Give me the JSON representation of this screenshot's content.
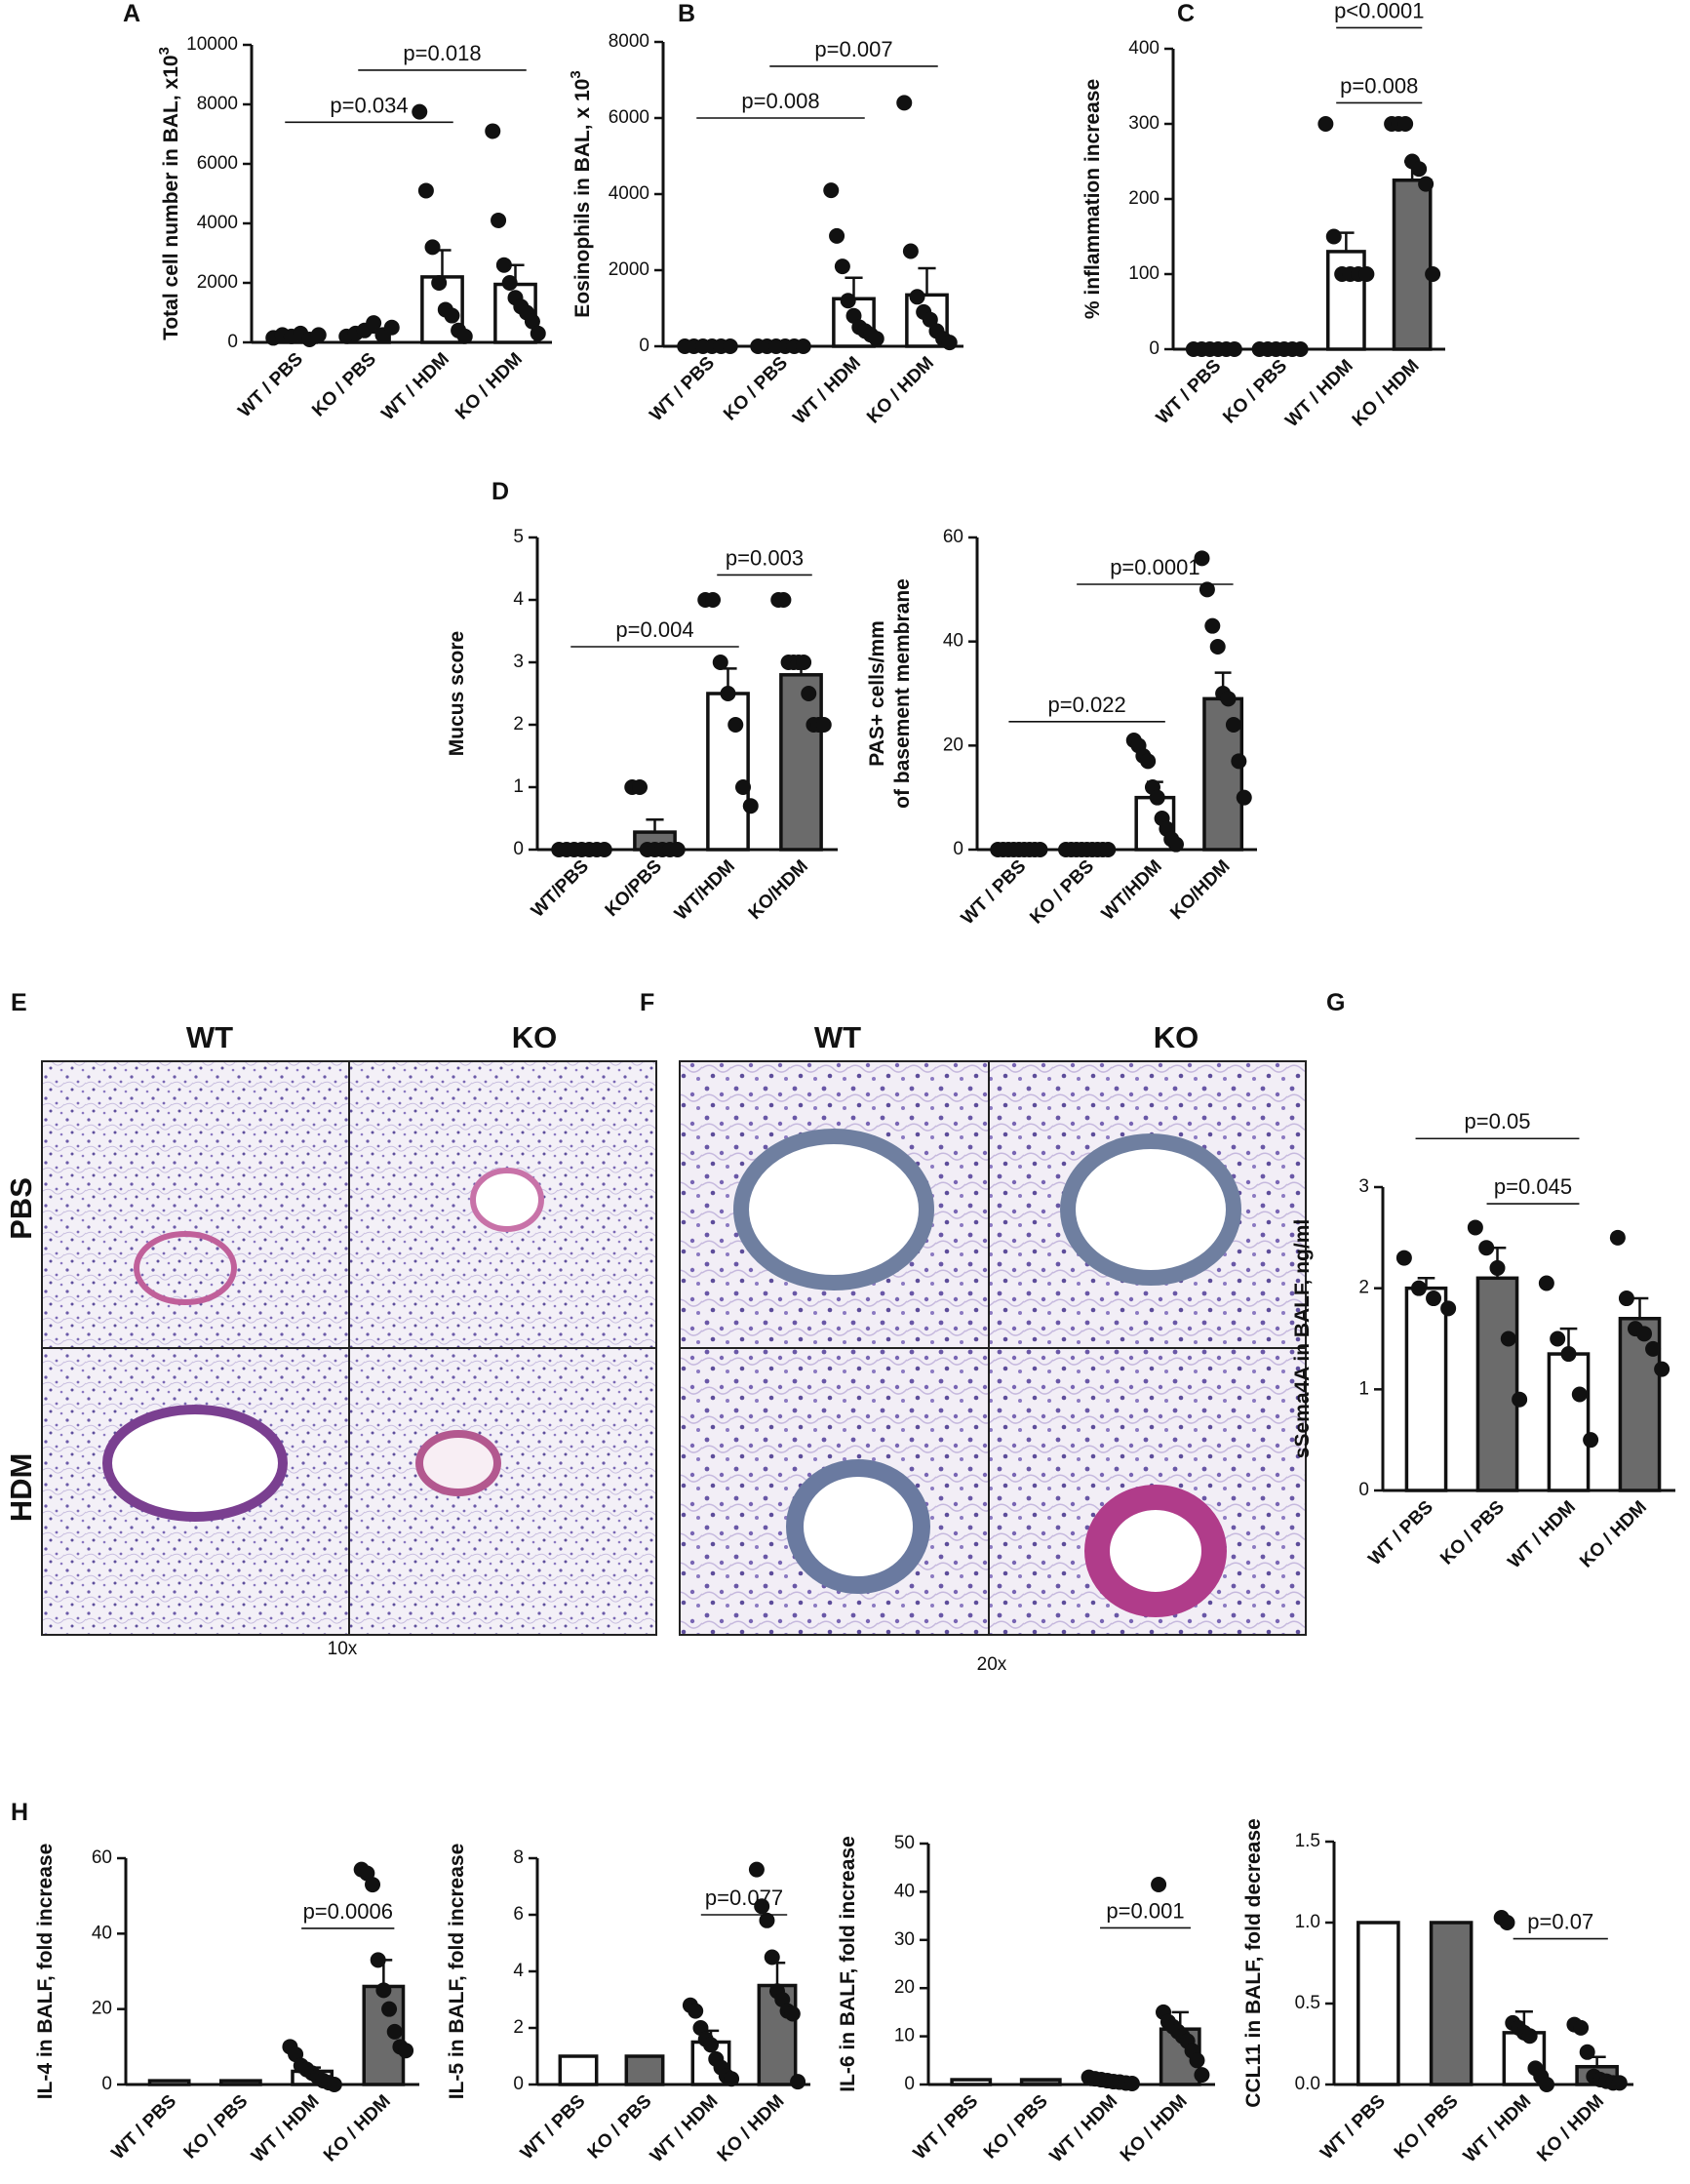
{
  "histology": [
    {
      "panel": "E",
      "columns": [
        "WT",
        "KO"
      ],
      "rows": [
        "PBS",
        "HDM"
      ],
      "magnification": "10x"
    },
    {
      "panel": "F",
      "columns": [
        "WT",
        "KO"
      ],
      "magnification": "20x"
    }
  ],
  "chart_data": [
    {
      "type": "bar",
      "panel": "A",
      "ylabel": "Total cell number in BAL, x10",
      "ylabel_superscript": "3",
      "categories": [
        "WT / PBS",
        "KO / PBS",
        "WT / HDM",
        "KO / HDM"
      ],
      "values": [
        200,
        350,
        2200,
        1950
      ],
      "errors": [
        50,
        100,
        900,
        650
      ],
      "colors": [
        "#ffffff",
        "#ffffff",
        "#ffffff",
        "#ffffff"
      ],
      "points": [
        [
          150,
          250,
          200,
          300,
          100,
          250
        ],
        [
          200,
          300,
          400,
          650,
          250,
          500
        ],
        [
          7750,
          5100,
          3200,
          2000,
          1100,
          900,
          400,
          200
        ],
        [
          7100,
          4100,
          2600,
          2000,
          1500,
          1200,
          1000,
          700,
          300
        ]
      ],
      "ylim": [
        0,
        10000
      ],
      "yticks": [
        0,
        2000,
        4000,
        6000,
        8000,
        10000
      ],
      "annotations": [
        {
          "text": "p=0.034",
          "between": [
            0,
            2
          ]
        },
        {
          "text": "p=0.018",
          "between": [
            1,
            3
          ]
        }
      ]
    },
    {
      "type": "bar",
      "panel": "B",
      "ylabel": "Eosinophils in BAL, x 10",
      "ylabel_superscript": "3",
      "categories": [
        "WT / PBS",
        "KO / PBS",
        "WT / HDM",
        "KO / HDM"
      ],
      "values": [
        20,
        20,
        1250,
        1350
      ],
      "errors": [
        5,
        5,
        550,
        700
      ],
      "colors": [
        "#ffffff",
        "#ffffff",
        "#ffffff",
        "#ffffff"
      ],
      "points": [
        [
          0,
          0,
          0,
          0,
          0,
          0
        ],
        [
          0,
          0,
          0,
          0,
          0,
          0
        ],
        [
          4100,
          2900,
          2100,
          1200,
          800,
          500,
          400,
          300,
          200
        ],
        [
          6400,
          2500,
          1300,
          900,
          700,
          400,
          200,
          100
        ]
      ],
      "ylim": [
        0,
        8000
      ],
      "yticks": [
        0,
        2000,
        4000,
        6000,
        8000
      ],
      "annotations": [
        {
          "text": "p=0.008",
          "between": [
            0,
            2
          ]
        },
        {
          "text": "p=0.007",
          "between": [
            1,
            3
          ]
        }
      ]
    },
    {
      "type": "bar",
      "panel": "C",
      "ylabel": "% inflammation increase",
      "categories": [
        "WT / PBS",
        "KO / PBS",
        "WT / HDM",
        "KO / HDM"
      ],
      "values": [
        0,
        0,
        130,
        225
      ],
      "errors": [
        0,
        0,
        25,
        25
      ],
      "colors": [
        "#ffffff",
        "#ffffff",
        "#ffffff",
        "#6b6b6b"
      ],
      "points": [
        [
          0,
          0,
          0,
          0,
          0,
          0
        ],
        [
          0,
          0,
          0,
          0,
          0,
          0
        ],
        [
          300,
          150,
          100,
          100,
          100,
          100
        ],
        [
          300,
          300,
          300,
          250,
          240,
          220,
          100
        ]
      ],
      "ylim": [
        0,
        400
      ],
      "yticks": [
        0,
        100,
        200,
        300,
        400
      ],
      "annotations": [
        {
          "text": "p<0.0001",
          "between": [
            2,
            3
          ]
        },
        {
          "text": "p=0.008",
          "between": [
            2,
            3
          ]
        }
      ]
    },
    {
      "type": "bar",
      "panel": "D",
      "ylabel": "Mucus score",
      "categories": [
        "WT/PBS",
        "KO/PBS",
        "WT/HDM",
        "KO/HDM"
      ],
      "values": [
        0,
        0.28,
        2.5,
        2.8
      ],
      "errors": [
        0,
        0.2,
        0.4,
        0.2
      ],
      "colors": [
        "#ffffff",
        "#6b6b6b",
        "#ffffff",
        "#6b6b6b"
      ],
      "points": [
        [
          0,
          0,
          0,
          0,
          0,
          0,
          0
        ],
        [
          1,
          1,
          0,
          0,
          0,
          0,
          0
        ],
        [
          4,
          4,
          3,
          2.5,
          2,
          1,
          0.7
        ],
        [
          4,
          4,
          3,
          3,
          3,
          3,
          2.5,
          2,
          2,
          2
        ]
      ],
      "ylim": [
        0,
        5
      ],
      "yticks": [
        0,
        1,
        2,
        3,
        4,
        5
      ],
      "annotations": [
        {
          "text": "p=0.004",
          "between": [
            0,
            2
          ]
        },
        {
          "text": "p=0.003",
          "between": [
            2,
            3
          ]
        }
      ]
    },
    {
      "type": "bar",
      "ylabel": [
        "PAS+ cells/mm",
        "of basement membrane"
      ],
      "categories": [
        "WT / PBS",
        "KO / PBS",
        "WT/HDM",
        "KO/HDM"
      ],
      "values": [
        0,
        0,
        10,
        29
      ],
      "errors": [
        0,
        0,
        3,
        5
      ],
      "colors": [
        "#ffffff",
        "#6b6b6b",
        "#ffffff",
        "#6b6b6b"
      ],
      "points": [
        [
          0,
          0,
          0,
          0,
          0,
          0,
          0,
          0,
          0
        ],
        [
          0,
          0,
          0,
          0,
          0,
          0,
          0,
          0,
          0
        ],
        [
          21,
          20,
          18,
          17,
          12,
          10,
          6,
          4,
          2,
          1
        ],
        [
          56,
          50,
          43,
          39,
          30,
          29,
          24,
          17,
          10
        ]
      ],
      "ylim": [
        0,
        60
      ],
      "yticks": [
        0,
        20,
        40,
        60
      ],
      "annotations": [
        {
          "text": "p=0.022",
          "between": [
            0,
            2
          ]
        },
        {
          "text": "p=0.0001",
          "between": [
            1,
            3
          ]
        }
      ]
    },
    {
      "type": "bar",
      "panel": "G",
      "ylabel": "sSema4A in BALF, ng/ml",
      "categories": [
        "WT / PBS",
        "KO / PBS",
        "WT / HDM",
        "KO / HDM"
      ],
      "values": [
        2.0,
        2.1,
        1.35,
        1.7
      ],
      "errors": [
        0.1,
        0.3,
        0.25,
        0.2
      ],
      "colors": [
        "#ffffff",
        "#6b6b6b",
        "#ffffff",
        "#6b6b6b"
      ],
      "points": [
        [
          2.3,
          2.0,
          1.9,
          1.8
        ],
        [
          2.6,
          2.4,
          2.2,
          1.5,
          0.9
        ],
        [
          2.05,
          1.5,
          1.35,
          0.95,
          0.5
        ],
        [
          2.5,
          1.9,
          1.6,
          1.55,
          1.4,
          1.2
        ]
      ],
      "ylim": [
        0,
        3
      ],
      "yticks": [
        0,
        1,
        2,
        3
      ],
      "annotations": [
        {
          "text": "p=0.05",
          "between": [
            0,
            2
          ]
        },
        {
          "text": "p=0.045",
          "between": [
            1,
            2
          ]
        }
      ]
    },
    {
      "type": "bar",
      "panel": "H",
      "ylabel": "IL-4 in BALF, fold increase",
      "categories": [
        "WT / PBS",
        "KO / PBS",
        "WT / HDM",
        "KO / HDM"
      ],
      "values": [
        1,
        1,
        3.5,
        26
      ],
      "errors": [
        0,
        0,
        1,
        7
      ],
      "colors": [
        "#ffffff",
        "#6b6b6b",
        "#ffffff",
        "#6b6b6b"
      ],
      "points": [
        [],
        [],
        [
          10,
          8,
          5,
          4,
          3,
          2,
          1,
          0.5,
          0
        ],
        [
          57,
          56,
          53,
          33,
          25,
          20,
          14,
          10,
          9
        ]
      ],
      "ylim": [
        0,
        60
      ],
      "yticks": [
        0,
        20,
        40,
        60
      ],
      "annotations": [
        {
          "text": "p=0.0006",
          "between": [
            2,
            3
          ]
        }
      ]
    },
    {
      "type": "bar",
      "ylabel": "IL-5 in BALF, fold increase",
      "categories": [
        "WT / PBS",
        "KO / PBS",
        "WT / HDM",
        "KO / HDM"
      ],
      "values": [
        1,
        1,
        1.5,
        3.5
      ],
      "errors": [
        0,
        0,
        0.4,
        0.8
      ],
      "colors": [
        "#ffffff",
        "#6b6b6b",
        "#ffffff",
        "#6b6b6b"
      ],
      "points": [
        [],
        [],
        [
          2.8,
          2.6,
          2,
          1.6,
          1.4,
          0.9,
          0.6,
          0.3,
          0.2
        ],
        [
          7.6,
          6.3,
          5.8,
          4.5,
          3.3,
          3,
          2.6,
          2.5,
          0.1
        ]
      ],
      "ylim": [
        0,
        8
      ],
      "yticks": [
        0,
        2,
        4,
        6,
        8
      ],
      "annotations": [
        {
          "text": "p=0.077",
          "between": [
            2,
            3
          ]
        }
      ]
    },
    {
      "type": "bar",
      "ylabel": "IL-6 in BALF, fold increase",
      "categories": [
        "WT / PBS",
        "KO / PBS",
        "WT / HDM",
        "KO / HDM"
      ],
      "values": [
        1,
        1,
        0.8,
        11.5
      ],
      "errors": [
        0,
        0,
        0.2,
        3.5
      ],
      "colors": [
        "#ffffff",
        "#6b6b6b",
        "#ffffff",
        "#6b6b6b"
      ],
      "points": [
        [],
        [],
        [
          1.5,
          1.2,
          1,
          0.8,
          0.6,
          0.5,
          0.3,
          0.2
        ],
        [
          41.5,
          15,
          13,
          12,
          11,
          10,
          9,
          7,
          5,
          2
        ]
      ],
      "ylim": [
        0,
        50
      ],
      "yticks": [
        0,
        10,
        20,
        30,
        40,
        50
      ],
      "annotations": [
        {
          "text": "p=0.001",
          "between": [
            2,
            3
          ]
        }
      ]
    },
    {
      "type": "bar",
      "ylabel": "CCL11 in BALF, fold decrease",
      "categories": [
        "WT / PBS",
        "KO / PBS",
        "WT / HDM",
        "KO / HDM"
      ],
      "values": [
        1,
        1,
        0.32,
        0.11
      ],
      "errors": [
        0,
        0,
        0.13,
        0.06
      ],
      "colors": [
        "#ffffff",
        "#6b6b6b",
        "#ffffff",
        "#6b6b6b"
      ],
      "points": [
        [],
        [],
        [
          1.03,
          1.0,
          0.38,
          0.35,
          0.32,
          0.3,
          0.1,
          0.05,
          0
        ],
        [
          0.37,
          0.35,
          0.2,
          0.05,
          0.03,
          0.02,
          0.01,
          0.01
        ]
      ],
      "ylim": [
        0,
        1.5
      ],
      "yticks": [
        {
          "value": 0,
          "label": "0.0"
        },
        0.5,
        {
          "value": 1,
          "label": "1.0"
        },
        1.5
      ],
      "annotations": [
        {
          "text": "p=0.07",
          "between": [
            2,
            3
          ]
        }
      ]
    }
  ]
}
